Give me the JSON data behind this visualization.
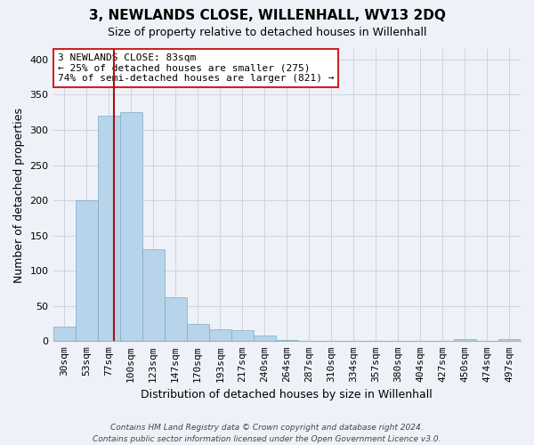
{
  "title": "3, NEWLANDS CLOSE, WILLENHALL, WV13 2DQ",
  "subtitle": "Size of property relative to detached houses in Willenhall",
  "xlabel": "Distribution of detached houses by size in Willenhall",
  "ylabel": "Number of detached properties",
  "bar_values": [
    20,
    200,
    320,
    325,
    130,
    62,
    25,
    17,
    15,
    8,
    2,
    0,
    0,
    0,
    0,
    0,
    0,
    0,
    3,
    0,
    3
  ],
  "bin_labels": [
    "30sqm",
    "53sqm",
    "77sqm",
    "100sqm",
    "123sqm",
    "147sqm",
    "170sqm",
    "193sqm",
    "217sqm",
    "240sqm",
    "264sqm",
    "287sqm",
    "310sqm",
    "334sqm",
    "357sqm",
    "380sqm",
    "404sqm",
    "427sqm",
    "450sqm",
    "474sqm",
    "497sqm"
  ],
  "bar_color": "#b8d4ea",
  "bar_edge_color": "#7aaaca",
  "vline_color": "#aa1111",
  "vline_x_index": 2.25,
  "annotation_text": "3 NEWLANDS CLOSE: 83sqm\n← 25% of detached houses are smaller (275)\n74% of semi-detached houses are larger (821) →",
  "annotation_box_facecolor": "#ffffff",
  "annotation_box_edgecolor": "#cc2222",
  "ylim": [
    0,
    415
  ],
  "yticks": [
    0,
    50,
    100,
    150,
    200,
    250,
    300,
    350,
    400
  ],
  "footer_text": "Contains HM Land Registry data © Crown copyright and database right 2024.\nContains public sector information licensed under the Open Government Licence v3.0.",
  "grid_color": "#ccd4e0",
  "background_color": "#eef2f8",
  "title_fontsize": 11,
  "subtitle_fontsize": 9,
  "ylabel_fontsize": 9,
  "xlabel_fontsize": 9,
  "tick_fontsize": 8,
  "annot_fontsize": 8,
  "footer_fontsize": 6.5
}
